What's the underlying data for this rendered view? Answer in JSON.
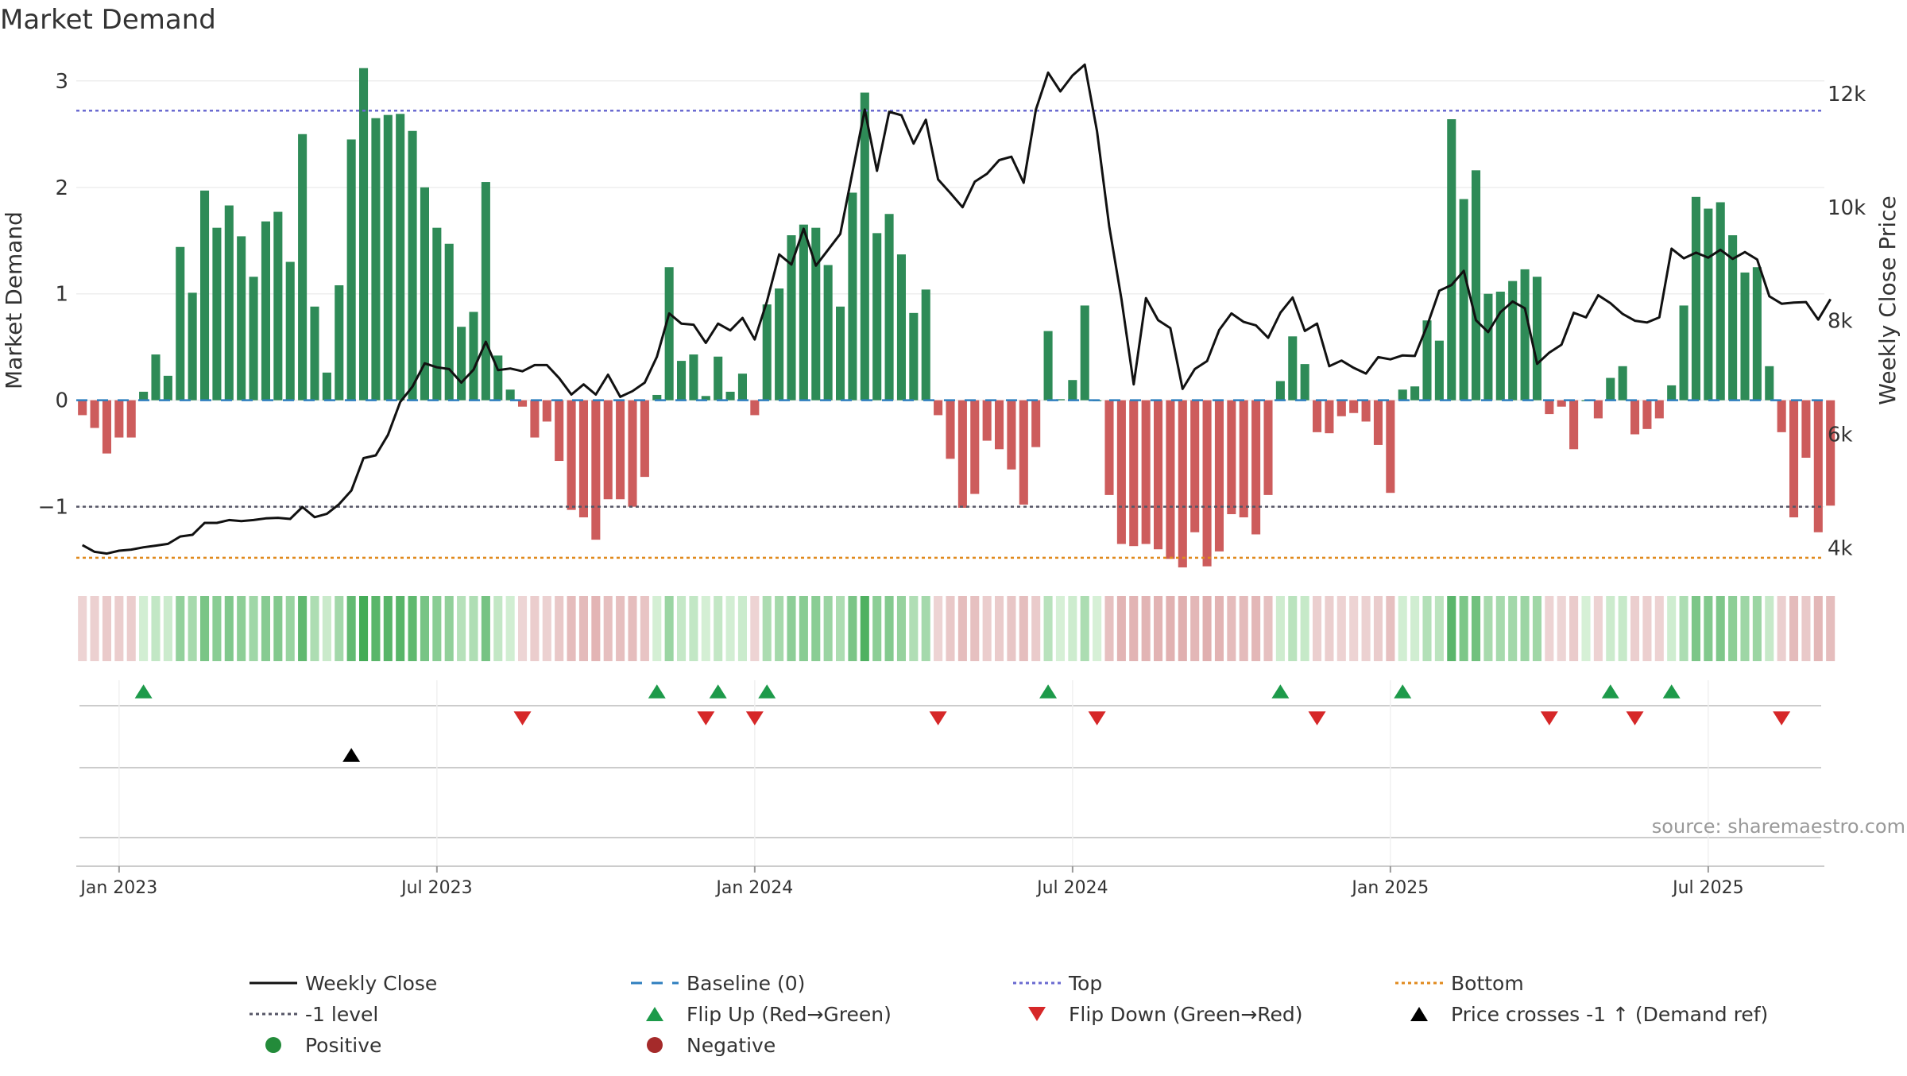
{
  "chart_data": {
    "type": "bar",
    "title": "Market Demand",
    "ylabel": "Market Demand",
    "y2label": "Weekly Close Price",
    "xlabel": "",
    "ylim": [
      -1.6,
      3.2
    ],
    "y2lim": [
      3600,
      12600
    ],
    "ytick_labels": [
      "−1",
      "0",
      "1",
      "2",
      "3"
    ],
    "ytick_values": [
      -1,
      0,
      1,
      2,
      3
    ],
    "y2tick_labels": [
      "4k",
      "6k",
      "8k",
      "10k",
      "12k"
    ],
    "y2tick_values": [
      4000,
      6000,
      8000,
      10000,
      12000
    ],
    "x_start": "2022-12-12",
    "x_end": "2025-09-08",
    "week_count": 143,
    "xtick_labels": [
      "Jan 2023",
      "Jul 2023",
      "Jan 2024",
      "Jul 2024",
      "Jan 2025",
      "Jul 2025"
    ],
    "xtick_weeks": [
      3,
      29,
      55,
      81,
      107,
      133
    ],
    "reference_lines": {
      "top": 2.72,
      "level_minus_1": -1,
      "bottom": -1.48,
      "baseline": 0
    },
    "demand_values": [
      -0.14,
      -0.26,
      -0.5,
      -0.35,
      -0.35,
      0.08,
      0.43,
      0.23,
      1.44,
      1.01,
      1.97,
      1.62,
      1.83,
      1.54,
      1.16,
      1.68,
      1.77,
      1.3,
      2.5,
      0.88,
      0.26,
      1.08,
      2.45,
      3.12,
      2.65,
      2.68,
      2.69,
      2.53,
      2.0,
      1.62,
      1.47,
      0.69,
      0.83,
      2.05,
      0.42,
      0.1,
      -0.06,
      -0.35,
      -0.2,
      -0.57,
      -1.03,
      -1.1,
      -1.31,
      -0.93,
      -0.93,
      -1.0,
      -0.72,
      0.05,
      1.25,
      0.37,
      0.43,
      0.04,
      0.41,
      0.08,
      0.25,
      -0.14,
      0.9,
      1.05,
      1.55,
      1.65,
      1.62,
      1.27,
      0.88,
      1.95,
      2.89,
      1.57,
      1.75,
      1.37,
      0.82,
      1.04,
      -0.14,
      -0.55,
      -1.01,
      -0.88,
      -0.38,
      -0.46,
      -0.65,
      -0.98,
      -0.44,
      0.65,
      0.01,
      0.19,
      0.89,
      0.0,
      -0.89,
      -1.35,
      -1.37,
      -1.35,
      -1.4,
      -1.49,
      -1.57,
      -1.24,
      -1.56,
      -1.42,
      -1.07,
      -1.1,
      -1.26,
      -0.89,
      0.18,
      0.6,
      0.34,
      -0.3,
      -0.31,
      -0.15,
      -0.12,
      -0.2,
      -0.42,
      -0.87,
      0.1,
      0.13,
      0.75,
      0.56,
      2.64,
      1.89,
      2.16,
      1.0,
      1.02,
      1.12,
      1.23,
      1.16,
      -0.13,
      -0.06,
      -0.46,
      0.0,
      -0.17,
      0.21,
      0.32,
      -0.32,
      -0.27,
      -0.17,
      0.14,
      0.89,
      1.91,
      1.8,
      1.86,
      1.55,
      1.2,
      1.25,
      0.32,
      -0.3,
      -1.1,
      -0.54,
      -1.24,
      -0.99
    ],
    "close_values": [
      4050,
      3930,
      3900,
      3950,
      3970,
      4010,
      4040,
      4070,
      4200,
      4230,
      4440,
      4440,
      4490,
      4470,
      4490,
      4520,
      4530,
      4510,
      4720,
      4540,
      4600,
      4770,
      5010,
      5580,
      5630,
      5990,
      6570,
      6840,
      7250,
      7180,
      7150,
      6910,
      7140,
      7630,
      7130,
      7160,
      7110,
      7220,
      7220,
      6990,
      6700,
      6880,
      6700,
      7050,
      6660,
      6760,
      6910,
      7370,
      8130,
      7950,
      7930,
      7610,
      7950,
      7830,
      8050,
      7670,
      8340,
      9170,
      8990,
      9620,
      8970,
      9250,
      9530,
      10620,
      11720,
      10640,
      11680,
      11620,
      11120,
      11540,
      10490,
      10250,
      10000,
      10450,
      10590,
      10830,
      10890,
      10430,
      11720,
      12370,
      12040,
      12320,
      12510,
      11340,
      9660,
      8380,
      6880,
      8400,
      8010,
      7870,
      6800,
      7150,
      7290,
      7840,
      8130,
      7980,
      7920,
      7700,
      8140,
      8410,
      7820,
      7950,
      7200,
      7300,
      7170,
      7070,
      7360,
      7320,
      7390,
      7380,
      7910,
      8530,
      8630,
      8880,
      8010,
      7800,
      8150,
      8340,
      8220,
      7240,
      7440,
      7580,
      8140,
      8060,
      8450,
      8310,
      8120,
      8000,
      7970,
      8060,
      9270,
      9100,
      9200,
      9110,
      9250,
      9090,
      9210,
      9080,
      8430,
      8300,
      8320,
      8330,
      8020,
      8380
    ],
    "heat_strip": "week-by-week color strip mirroring demand sign and magnitude",
    "flip_up_weeks": [
      5,
      47,
      52,
      56,
      79,
      98,
      108,
      125,
      130
    ],
    "flip_down_weeks": [
      36,
      51,
      55,
      70,
      83,
      101,
      120,
      127,
      139
    ],
    "price_cross_weeks": [
      22
    ],
    "source_note": "source: sharemaestro.com",
    "legend": [
      {
        "label": "Weekly Close",
        "symbol": "line",
        "color": "#111111"
      },
      {
        "label": "Baseline (0)",
        "symbol": "dash",
        "color": "#2f7fbf"
      },
      {
        "label": "Top",
        "symbol": "dots",
        "color": "#6a6ad0"
      },
      {
        "label": "Bottom",
        "symbol": "dots",
        "color": "#e08a1e"
      },
      {
        "label": "-1 level",
        "symbol": "dots",
        "color": "#555566"
      },
      {
        "label": "Flip Up (Red→Green)",
        "symbol": "tri-up",
        "color": "#1d9a4a"
      },
      {
        "label": "Flip Down (Green→Red)",
        "symbol": "tri-down",
        "color": "#d62728"
      },
      {
        "label": "Price crosses -1 ↑ (Demand ref)",
        "symbol": "tri-up",
        "color": "#000000"
      },
      {
        "label": "Positive",
        "symbol": "circle",
        "color": "#238b3a"
      },
      {
        "label": "Negative",
        "symbol": "circle",
        "color": "#a52a2a"
      }
    ],
    "colors": {
      "positive_bar": "#2e8b57",
      "negative_bar": "#cd5c5c",
      "close_line": "#111111",
      "baseline": "#2f7fbf",
      "top": "#6a6ad0",
      "bottom": "#e08a1e",
      "minus_one": "#555566",
      "flip_up": "#1d9a4a",
      "flip_down": "#d62728",
      "price_cross": "#000000"
    }
  }
}
